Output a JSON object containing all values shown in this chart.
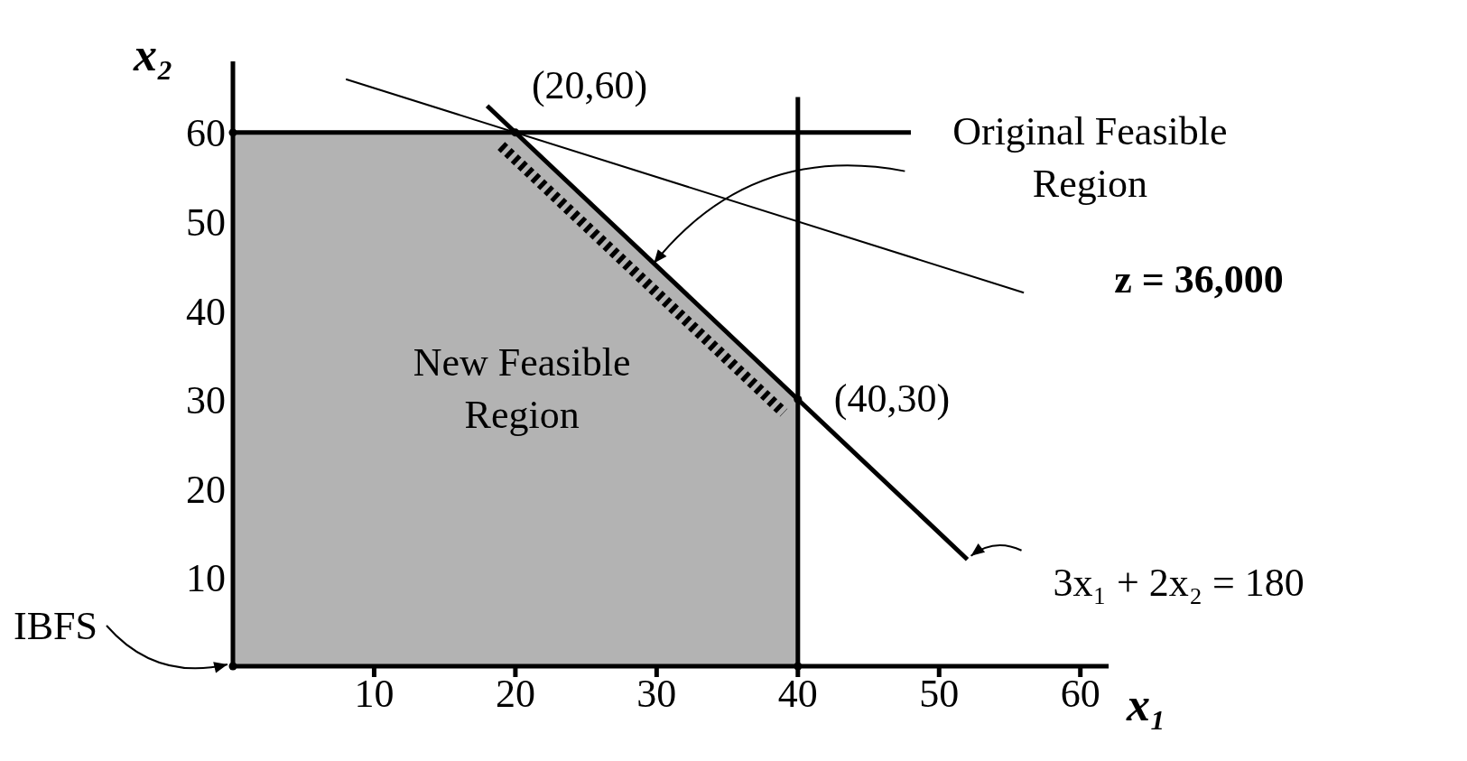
{
  "chart_data": {
    "type": "line",
    "xlabel": "x₁",
    "ylabel": "x₂",
    "xlim": [
      0,
      62
    ],
    "ylim": [
      0,
      68
    ],
    "xticks": [
      10,
      20,
      30,
      40,
      50,
      60
    ],
    "yticks": [
      10,
      20,
      30,
      40,
      50,
      60
    ],
    "series": [
      {
        "type": "area",
        "color": "#b3b3b3",
        "x": [
          0,
          20,
          40,
          40
        ],
        "values": [
          60,
          60,
          30,
          0
        ]
      },
      {
        "color": "#000000",
        "x": [
          0,
          48
        ],
        "values": [
          60,
          60
        ]
      },
      {
        "color": "#000000",
        "x": [
          40,
          40
        ],
        "values": [
          0,
          64
        ]
      },
      {
        "color": "#000000",
        "x": [
          18,
          52
        ],
        "values": [
          63,
          12
        ]
      },
      {
        "color": "#000000",
        "line_style": "dashed",
        "x": [
          19,
          39
        ],
        "values": [
          58.5,
          28.5
        ]
      },
      {
        "color": "#000000",
        "x": [
          8,
          56
        ],
        "values": [
          66,
          42
        ]
      },
      {
        "type": "scatter",
        "color": "#000000",
        "marker": "circle",
        "x": [
          0,
          0,
          20,
          40,
          40
        ],
        "values": [
          0,
          60,
          60,
          30,
          0
        ]
      }
    ],
    "annotations": [
      {
        "text": "(20,60)",
        "x": 20,
        "y": 60
      },
      {
        "text": "(40,30)",
        "x": 40,
        "y": 30
      },
      "New Feasible Region",
      {
        "text": "Original Feasible Region",
        "x": 30,
        "y": 45
      },
      {
        "text": "z = 36,000",
        "x": 56,
        "y": 42
      },
      {
        "text": "3x₁ + 2x₂ = 180",
        "x": 52,
        "y": 12
      },
      {
        "text": "IBFS",
        "x": 0,
        "y": 0
      }
    ]
  }
}
